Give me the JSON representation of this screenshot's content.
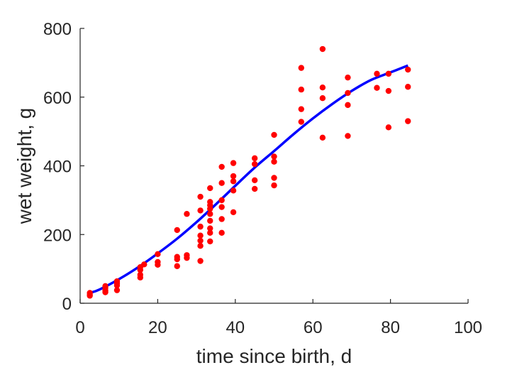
{
  "chart_data": {
    "type": "scatter",
    "title": "",
    "xlabel": "time since birth, d",
    "ylabel": "wet weight, g",
    "xlim": [
      0,
      100
    ],
    "ylim": [
      0,
      800
    ],
    "xticks": [
      0,
      20,
      40,
      60,
      80,
      100
    ],
    "yticks": [
      0,
      200,
      400,
      600,
      800
    ],
    "grid": false,
    "series": [
      {
        "kind": "scatter",
        "color": "#ff0000",
        "points": [
          [
            2.5,
            22
          ],
          [
            2.5,
            25
          ],
          [
            2.5,
            30
          ],
          [
            6.5,
            32
          ],
          [
            6.5,
            37
          ],
          [
            6.5,
            45
          ],
          [
            6.5,
            50
          ],
          [
            9.5,
            38
          ],
          [
            9.5,
            52
          ],
          [
            9.5,
            58
          ],
          [
            9.5,
            64
          ],
          [
            15.5,
            75
          ],
          [
            15.5,
            83
          ],
          [
            15.5,
            97
          ],
          [
            15.5,
            105
          ],
          [
            16.5,
            113
          ],
          [
            20,
            112
          ],
          [
            20,
            120
          ],
          [
            20,
            143
          ],
          [
            25,
            108
          ],
          [
            25,
            128
          ],
          [
            25,
            135
          ],
          [
            25,
            213
          ],
          [
            27.5,
            132
          ],
          [
            27.5,
            140
          ],
          [
            27.5,
            260
          ],
          [
            31,
            123
          ],
          [
            31,
            167
          ],
          [
            31,
            182
          ],
          [
            31,
            197
          ],
          [
            31,
            223
          ],
          [
            31,
            270
          ],
          [
            31,
            310
          ],
          [
            33.5,
            180
          ],
          [
            33.5,
            205
          ],
          [
            33.5,
            218
          ],
          [
            33.5,
            240
          ],
          [
            33.5,
            260
          ],
          [
            33.5,
            275
          ],
          [
            33.5,
            285
          ],
          [
            33.5,
            295
          ],
          [
            33.5,
            335
          ],
          [
            36.5,
            205
          ],
          [
            36.5,
            245
          ],
          [
            36.5,
            280
          ],
          [
            36.5,
            300
          ],
          [
            36.5,
            350
          ],
          [
            36.5,
            397
          ],
          [
            39.5,
            265
          ],
          [
            39.5,
            328
          ],
          [
            39.5,
            355
          ],
          [
            39.5,
            370
          ],
          [
            39.5,
            408
          ],
          [
            45,
            333
          ],
          [
            45,
            358
          ],
          [
            45,
            405
          ],
          [
            45,
            422
          ],
          [
            50,
            343
          ],
          [
            50,
            365
          ],
          [
            50,
            412
          ],
          [
            50,
            427
          ],
          [
            50,
            490
          ],
          [
            57,
            528
          ],
          [
            57,
            565
          ],
          [
            57,
            622
          ],
          [
            57,
            685
          ],
          [
            62.5,
            482
          ],
          [
            62.5,
            597
          ],
          [
            62.5,
            628
          ],
          [
            62.5,
            740
          ],
          [
            69,
            487
          ],
          [
            69,
            577
          ],
          [
            69,
            612
          ],
          [
            69,
            657
          ],
          [
            76.5,
            627
          ],
          [
            76.5,
            668
          ],
          [
            79.5,
            512
          ],
          [
            79.5,
            618
          ],
          [
            79.5,
            668
          ],
          [
            84.5,
            530
          ],
          [
            84.5,
            630
          ],
          [
            84.5,
            680
          ]
        ]
      },
      {
        "kind": "line",
        "color": "#0000ff",
        "x": [
          2.5,
          5,
          10,
          15,
          20,
          25,
          30,
          35,
          40,
          45,
          50,
          55,
          60,
          65,
          70,
          75,
          80,
          84.5
        ],
        "y": [
          30,
          40,
          70,
          105,
          145,
          188,
          236,
          288,
          342,
          395,
          443,
          492,
          538,
          580,
          618,
          650,
          672,
          692
        ]
      }
    ]
  }
}
